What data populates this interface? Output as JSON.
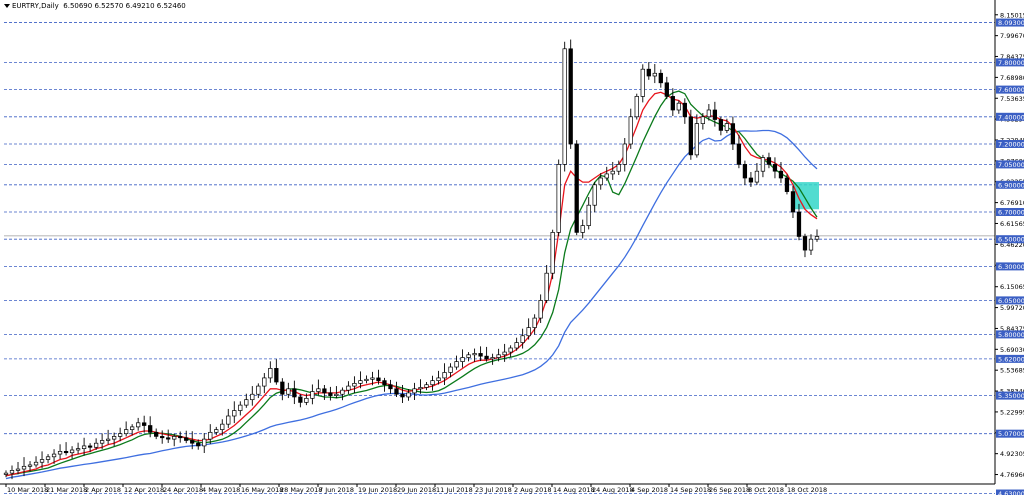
{
  "header": {
    "symbol": "EURTRY,Daily",
    "ohlc": "6.50690 6.52570 6.49210 6.52460"
  },
  "colors": {
    "background": "#ffffff",
    "grid": "#3b5fc4",
    "bull_candle": "#ffffff",
    "bear_candle": "#000000",
    "ma_fast": "#e8141c",
    "ma_mid": "#0b7a1b",
    "ma_slow": "#3f6fe0",
    "box": "#34d6c8"
  },
  "chart_data": {
    "type": "candlestick",
    "title": "EURTRY,Daily",
    "ylim": [
      4.7,
      8.2
    ],
    "price_ticks": [
      "8.15015",
      "7.99670",
      "7.84375",
      "7.68980",
      "7.53635",
      "7.38290",
      "7.22945",
      "7.07600",
      "6.92255",
      "6.76910",
      "6.61565",
      "6.46220",
      "6.30875",
      "6.15065",
      "5.99720",
      "5.84375",
      "5.69030",
      "5.53685",
      "5.38340",
      "5.22995",
      "5.07650",
      "4.92305",
      "4.76960"
    ],
    "level_lines": [
      "8.09300",
      "7.80000",
      "7.60000",
      "7.40000",
      "7.20000",
      "7.05000",
      "6.90000",
      "6.70000",
      "6.50000",
      "6.30000",
      "6.05000",
      "5.80000",
      "5.62000",
      "5.35000",
      "5.07000",
      "4.63000"
    ],
    "current_price": "6.52460",
    "x_labels": [
      "10 Mar 2018",
      "21 Mar 2018",
      "2 Apr 2018",
      "12 Apr 2018",
      "24 Apr 2018",
      "4 May 2018",
      "16 May 2018",
      "28 May 2018",
      "7 Jun 2018",
      "19 Jun 2018",
      "29 Jun 2018",
      "11 Jul 2018",
      "23 Jul 2018",
      "2 Aug 2018",
      "14 Aug 2018",
      "24 Aug 2018",
      "4 Sep 2018",
      "14 Sep 2018",
      "26 Sep 2018",
      "8 Oct 2018",
      "18 Oct 2018"
    ],
    "close": [
      4.78,
      4.8,
      4.81,
      4.83,
      4.84,
      4.86,
      4.88,
      4.9,
      4.92,
      4.94,
      4.93,
      4.95,
      4.96,
      4.98,
      4.97,
      5.0,
      5.02,
      5.03,
      5.05,
      5.07,
      5.1,
      5.12,
      5.15,
      5.13,
      5.08,
      5.05,
      5.04,
      5.03,
      5.05,
      5.04,
      5.02,
      5.0,
      4.98,
      5.03,
      5.08,
      5.1,
      5.14,
      5.2,
      5.24,
      5.28,
      5.32,
      5.36,
      5.42,
      5.48,
      5.55,
      5.45,
      5.36,
      5.4,
      5.34,
      5.3,
      5.33,
      5.38,
      5.4,
      5.37,
      5.35,
      5.36,
      5.39,
      5.42,
      5.44,
      5.46,
      5.47,
      5.48,
      5.46,
      5.43,
      5.4,
      5.36,
      5.34,
      5.37,
      5.4,
      5.41,
      5.43,
      5.46,
      5.48,
      5.52,
      5.56,
      5.6,
      5.63,
      5.65,
      5.66,
      5.64,
      5.62,
      5.63,
      5.65,
      5.67,
      5.7,
      5.74,
      5.79,
      5.85,
      5.92,
      6.05,
      6.25,
      6.55,
      7.05,
      7.9,
      7.2,
      6.55,
      6.6,
      6.75,
      6.9,
      6.95,
      6.98,
      7.0,
      7.05,
      7.2,
      7.4,
      7.55,
      7.75,
      7.7,
      7.72,
      7.65,
      7.55,
      7.45,
      7.5,
      7.4,
      7.12,
      7.35,
      7.4,
      7.45,
      7.38,
      7.3,
      7.35,
      7.2,
      7.05,
      6.95,
      6.92,
      7.0,
      7.1,
      7.05,
      7.0,
      6.95,
      6.85,
      6.7,
      6.52,
      6.42,
      6.5,
      6.52
    ],
    "ma_fast": [
      4.76,
      4.77,
      4.78,
      4.79,
      4.8,
      4.81,
      4.83,
      4.84,
      4.86,
      4.88,
      4.89,
      4.91,
      4.92,
      4.93,
      4.94,
      4.96,
      4.97,
      4.99,
      5.0,
      5.02,
      5.04,
      5.06,
      5.08,
      5.09,
      5.09,
      5.08,
      5.07,
      5.06,
      5.05,
      5.05,
      5.04,
      5.03,
      5.02,
      5.02,
      5.03,
      5.05,
      5.07,
      5.1,
      5.13,
      5.17,
      5.21,
      5.25,
      5.3,
      5.35,
      5.4,
      5.4,
      5.39,
      5.39,
      5.38,
      5.36,
      5.35,
      5.36,
      5.37,
      5.37,
      5.37,
      5.37,
      5.38,
      5.39,
      5.4,
      5.42,
      5.43,
      5.44,
      5.45,
      5.44,
      5.43,
      5.41,
      5.39,
      5.38,
      5.39,
      5.4,
      5.41,
      5.42,
      5.44,
      5.46,
      5.49,
      5.52,
      5.55,
      5.58,
      5.6,
      5.61,
      5.61,
      5.62,
      5.63,
      5.64,
      5.66,
      5.69,
      5.73,
      5.78,
      5.84,
      5.93,
      6.06,
      6.25,
      6.55,
      6.9,
      7.0,
      6.95,
      6.92,
      6.92,
      6.95,
      6.98,
      7.0,
      7.02,
      7.05,
      7.12,
      7.22,
      7.33,
      7.45,
      7.52,
      7.57,
      7.58,
      7.56,
      7.53,
      7.52,
      7.48,
      7.4,
      7.39,
      7.4,
      7.41,
      7.4,
      7.38,
      7.37,
      7.33,
      7.26,
      7.18,
      7.12,
      7.1,
      7.09,
      7.08,
      7.06,
      7.03,
      6.98,
      6.9,
      6.8,
      6.72,
      6.68,
      6.65
    ]
  }
}
